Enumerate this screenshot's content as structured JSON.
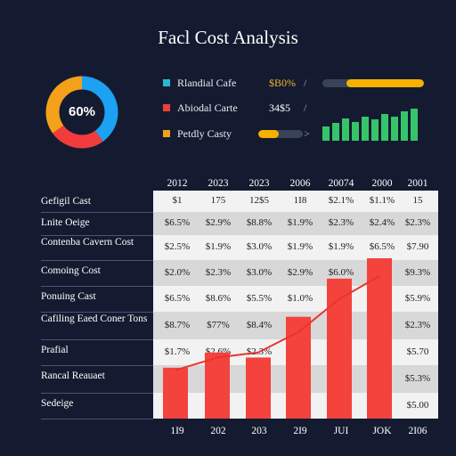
{
  "title": "Facl Cost Analysis",
  "donut": {
    "label": "60%",
    "segments": [
      {
        "color": "#1da1f2",
        "fraction": 0.4
      },
      {
        "color": "#f23c3c",
        "fraction": 0.25
      },
      {
        "color": "#f5a01a",
        "fraction": 0.35
      }
    ]
  },
  "legend": [
    {
      "label": "Rlandial Cafe",
      "value": "$B0%",
      "value_color": "#f5b52a",
      "color": "#29b6d6"
    },
    {
      "label": "Abiodal Carte",
      "value": "34$5",
      "value_color": "#ffffff",
      "color": "#f23c3c"
    },
    {
      "label": "Petdly Casty",
      "value": "",
      "value_color": "#ffffff",
      "color": "#f5a01a"
    }
  ],
  "progress_bars": [
    {
      "fraction": 0.76,
      "track": "#3a4258",
      "fill": "#f5b100"
    },
    {
      "fraction": 0.45,
      "track": "#3a4258",
      "fill": "#f5b100"
    }
  ],
  "sparkline": [
    0.42,
    0.52,
    0.65,
    0.55,
    0.72,
    0.62,
    0.78,
    0.7,
    0.88,
    0.95
  ],
  "sparkline_color": "#36c46a",
  "table": {
    "columns": [
      "2012",
      "2023",
      "2023",
      "2006",
      "20074",
      "2000",
      "2001"
    ],
    "rows": [
      {
        "label": "Gefigil Cast",
        "cells": [
          "$1",
          "175",
          "12$5",
          "1I8",
          "$2.1%",
          "$1.1%",
          "15"
        ]
      },
      {
        "label": "Lnite Oeige",
        "cells": [
          "$6.5%",
          "$2.9%",
          "$8.8%",
          "$1.9%",
          "$2.3%",
          "$2.4%",
          "$2.3%"
        ]
      },
      {
        "label": "Contenba Cavern Cost",
        "cells": [
          "$2.5%",
          "$1.9%",
          "$3.0%",
          "$1.9%",
          "$1.9%",
          "$6.5%",
          "$7.90"
        ]
      },
      {
        "label": "Comoing Cost",
        "cells": [
          "$2.0%",
          "$2.3%",
          "$3.0%",
          "$2.9%",
          "$6.0%",
          "",
          "$9.3%"
        ]
      },
      {
        "label": "Ponuing Cast",
        "cells": [
          "$6.5%",
          "$8.6%",
          "$5.5%",
          "$1.0%",
          "",
          "",
          "$5.9%"
        ]
      },
      {
        "label": "Cafiling Eaed Coner Tons",
        "cells": [
          "$8.7%",
          "$77%",
          "$8.4%",
          "",
          "",
          "",
          "$2.3%"
        ]
      },
      {
        "label": "Prafial",
        "cells": [
          "$1.7%",
          "$2.6%",
          "$2.3%",
          "",
          "",
          "",
          "$5.70"
        ]
      },
      {
        "label": "Rancal Reauaet",
        "cells": [
          "",
          "",
          "",
          "",
          "",
          "",
          "$5.3%"
        ]
      },
      {
        "label": "Sedeige",
        "cells": [
          "",
          "",
          "",
          "",
          "",
          "",
          "$5.00"
        ]
      }
    ]
  },
  "chart_data": {
    "type": "bar",
    "categories": [
      "1I9",
      "202",
      "203",
      "2I9",
      "JUI",
      "JOK"
    ],
    "values": [
      2.0,
      2.6,
      2.4,
      4.0,
      5.5,
      6.3
    ],
    "trend_line": [
      1.9,
      2.4,
      2.6,
      3.4,
      4.7,
      5.6
    ],
    "ylim": [
      0,
      7
    ],
    "bar_color": "#f4423c",
    "line_color": "#e8362f",
    "x_tick_labels": [
      "1I9",
      "202",
      "203",
      "2I9",
      "JUI",
      "JOK",
      "2I06"
    ]
  }
}
